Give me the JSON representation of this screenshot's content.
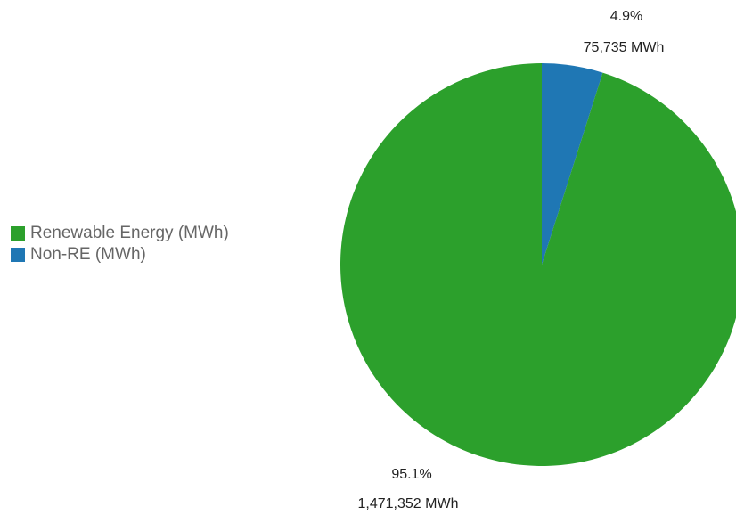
{
  "chart_data": {
    "type": "pie",
    "title": "",
    "categories": [
      "Renewable Energy (MWh)",
      "Non-RE (MWh)"
    ],
    "values": [
      1471352,
      75735
    ],
    "colors": [
      "#2ca02c",
      "#1f77b4"
    ],
    "percent_labels": [
      "95.1%",
      "4.9%"
    ],
    "value_labels": [
      "1,471,352 MWh",
      "75,735 MWh"
    ],
    "legend": {
      "placement": "left",
      "items": [
        {
          "label": "Renewable Energy (MWh)",
          "color": "#2ca02c"
        },
        {
          "label": "Non-RE (MWh)",
          "color": "#1f77b4"
        }
      ]
    }
  }
}
